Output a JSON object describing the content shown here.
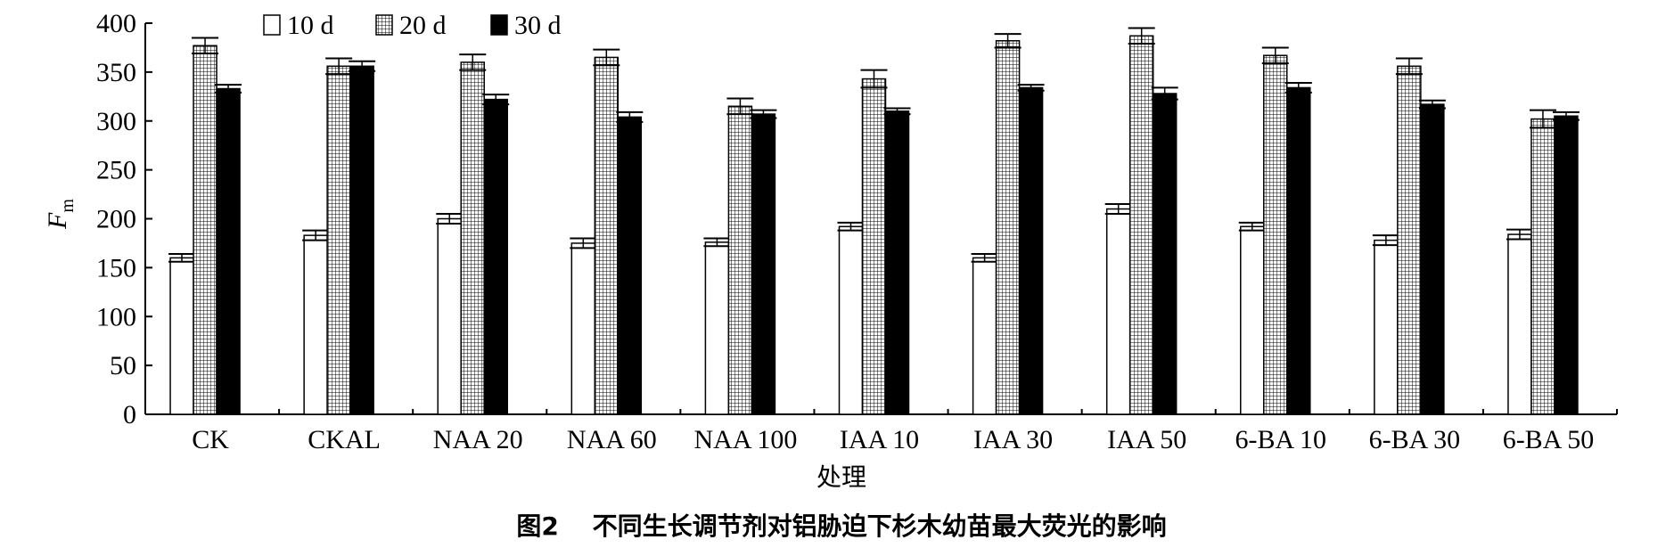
{
  "chart_data": {
    "type": "bar",
    "ylabel_main": "F",
    "ylabel_sub": "m",
    "xlabel": "处理",
    "caption": "图2　 不同生长调节剂对铝胁迫下杉木幼苗最大荧光的影响",
    "ylim": [
      0,
      400
    ],
    "yticks": [
      0,
      50,
      100,
      150,
      200,
      250,
      300,
      350,
      400
    ],
    "categories": [
      "CK",
      "CKAL",
      "NAA 20",
      "NAA 60",
      "NAA 100",
      "IAA 10",
      "IAA 30",
      "IAA 50",
      "6-BA 10",
      "6-BA 30",
      "6-BA 50"
    ],
    "series": [
      {
        "name": "10 d",
        "pattern": "white",
        "values": [
          160,
          183,
          200,
          175,
          176,
          192,
          160,
          210,
          192,
          178,
          184
        ],
        "errors": [
          4,
          5,
          5,
          5,
          4,
          4,
          4,
          5,
          4,
          5,
          5
        ]
      },
      {
        "name": "20 d",
        "pattern": "grid",
        "values": [
          377,
          356,
          360,
          365,
          315,
          343,
          382,
          387,
          367,
          356,
          302
        ],
        "errors": [
          8,
          8,
          8,
          8,
          8,
          9,
          7,
          8,
          8,
          8,
          9
        ]
      },
      {
        "name": "30 d",
        "pattern": "black",
        "values": [
          333,
          356,
          322,
          304,
          307,
          310,
          334,
          328,
          334,
          317,
          305
        ],
        "errors": [
          4,
          5,
          5,
          5,
          4,
          3,
          3,
          6,
          5,
          4,
          4
        ]
      }
    ],
    "legend_position": "top-left",
    "grid": false
  }
}
